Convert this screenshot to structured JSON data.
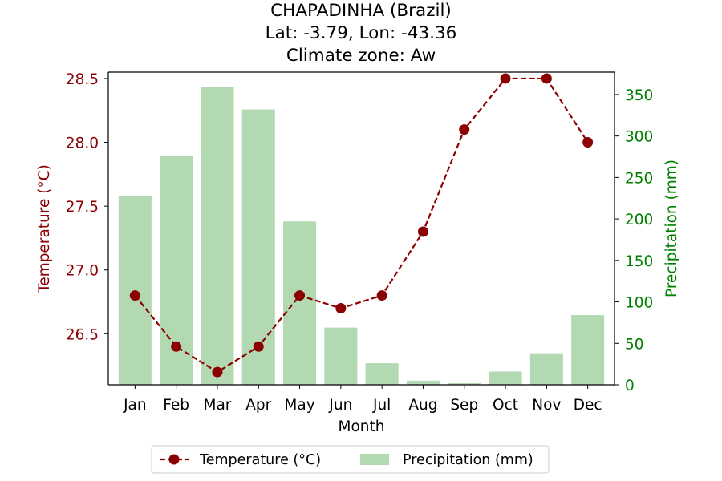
{
  "chart_data": {
    "type": "bar",
    "title": [
      "CHAPADINHA (Brazil)",
      "Lat: -3.79, Lon: -43.36",
      "Climate zone: Aw"
    ],
    "xlabel": "Month",
    "categories": [
      "Jan",
      "Feb",
      "Mar",
      "Apr",
      "May",
      "Jun",
      "Jul",
      "Aug",
      "Sep",
      "Oct",
      "Nov",
      "Dec"
    ],
    "series": [
      {
        "name": "Precipitation (mm)",
        "type": "bar",
        "axis": "right",
        "color": "#b2d9b2",
        "values": [
          228,
          276,
          359,
          332,
          197,
          69,
          26,
          5,
          2,
          16,
          38,
          84
        ]
      },
      {
        "name": "Temperature (°C)",
        "type": "line",
        "axis": "left",
        "color": "#8b0000",
        "line_style": "dashed",
        "marker": "circle",
        "values": [
          26.8,
          26.4,
          26.2,
          26.4,
          26.8,
          26.7,
          26.8,
          27.3,
          28.1,
          28.5,
          28.5,
          28.0
        ]
      }
    ],
    "y_left": {
      "label": "Temperature (°C)",
      "color": "#8b0000",
      "lim": [
        26.1,
        28.55
      ],
      "ticks": [
        26.5,
        27.0,
        27.5,
        28.0,
        28.5
      ],
      "tick_labels": [
        "26.5",
        "27.0",
        "27.5",
        "28.0",
        "28.5"
      ]
    },
    "y_right": {
      "label": "Precipitation (mm)",
      "color": "#008000",
      "lim": [
        0,
        377
      ],
      "ticks": [
        0,
        50,
        100,
        150,
        200,
        250,
        300,
        350
      ],
      "tick_labels": [
        "0",
        "50",
        "100",
        "150",
        "200",
        "250",
        "300",
        "350"
      ]
    },
    "grid": false,
    "legend_position": "bottom-center"
  }
}
